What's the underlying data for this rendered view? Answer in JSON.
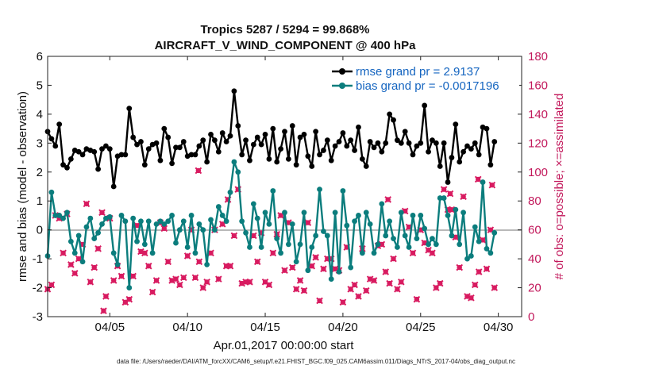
{
  "chart_data": {
    "type": "line",
    "title_line1": "Tropics 5287 / 5294 = 99.868%",
    "title_line2": "AIRCRAFT_V_WIND_COMPONENT @ 400 hPa",
    "xlabel": "Apr.01,2017 00:00:00 start",
    "ylabel_left": "rmse and bias (model - observation)",
    "ylabel_right": "# of obs: o=possible; ×=assimilated",
    "x_range_days": [
      1,
      31.5
    ],
    "ylim_left": [
      -3,
      6
    ],
    "ylim_right": [
      0,
      180
    ],
    "x_tick_values": [
      5,
      10,
      15,
      20,
      25,
      30
    ],
    "x_tick_labels": [
      "04/05",
      "04/10",
      "04/15",
      "04/20",
      "04/25",
      "04/30"
    ],
    "y_left_tick_labels": [
      "-3",
      "-2",
      "-1",
      "0",
      "1",
      "2",
      "3",
      "4",
      "5",
      "6"
    ],
    "y_right_tick_labels": [
      "0",
      "20",
      "40",
      "60",
      "80",
      "100",
      "120",
      "140",
      "160",
      "180"
    ],
    "x_step_days": 0.25,
    "x_start_day": 1.0,
    "series": [
      {
        "name": "rmse",
        "legend_label": "rmse grand pr = 2.9137",
        "color": "#000000",
        "axis": "left",
        "values": [
          3.4,
          3.15,
          2.9,
          3.65,
          2.25,
          2.15,
          2.45,
          2.75,
          2.7,
          2.6,
          2.8,
          2.75,
          2.7,
          2.1,
          2.8,
          2.9,
          2.8,
          1.5,
          2.55,
          2.6,
          2.6,
          4.2,
          3.2,
          2.95,
          3.05,
          2.25,
          2.8,
          2.95,
          3.0,
          2.4,
          3.5,
          3.2,
          2.3,
          2.85,
          2.85,
          3.05,
          2.55,
          2.6,
          2.6,
          2.9,
          3.1,
          2.35,
          3.3,
          3.1,
          2.7,
          3.35,
          3.05,
          3.25,
          4.8,
          3.6,
          2.6,
          3.1,
          2.4,
          2.95,
          3.2,
          2.95,
          3.3,
          2.45,
          3.5,
          2.35,
          2.8,
          3.4,
          2.45,
          3.6,
          2.25,
          3.2,
          3.3,
          2.55,
          2.2,
          3.4,
          2.6,
          2.75,
          3.1,
          2.4,
          2.9,
          3.05,
          3.35,
          2.9,
          3.1,
          2.75,
          3.55,
          2.45,
          2.2,
          3.05,
          2.85,
          3.0,
          2.7,
          3.0,
          4.0,
          3.8,
          3.1,
          3.0,
          3.4,
          3.0,
          2.6,
          2.9,
          3.0,
          4.3,
          2.7,
          3.1,
          3.0,
          2.2,
          3.0,
          1.65,
          2.5,
          3.65,
          2.35,
          2.7,
          2.9,
          2.8,
          3.0,
          2.6,
          3.55,
          3.5,
          2.25,
          3.05
        ]
      },
      {
        "name": "bias",
        "legend_label": "bias grand pr = -0.0017196",
        "color": "#0b7d7d",
        "axis": "left",
        "values": [
          -0.9,
          1.3,
          0.5,
          0.5,
          0.4,
          0.6,
          -0.4,
          -0.8,
          -0.2,
          -1.1,
          0.1,
          0.4,
          -0.3,
          -0.1,
          0.2,
          0.4,
          0.45,
          -0.8,
          -1.2,
          0.5,
          0.3,
          -2.0,
          0.4,
          -0.4,
          0.3,
          -0.5,
          0.3,
          -0.8,
          0.2,
          0.3,
          0.2,
          0.3,
          0.5,
          -0.45,
          0.0,
          0.3,
          -0.6,
          0.5,
          -0.8,
          0.2,
          0.0,
          -1.2,
          0.35,
          0.0,
          0.8,
          0.5,
          0.3,
          1.3,
          2.35,
          2.0,
          0.3,
          -0.1,
          -0.6,
          0.9,
          0.4,
          -0.6,
          0.6,
          0.2,
          1.35,
          -0.3,
          -0.8,
          0.6,
          -0.5,
          0.2,
          -1.1,
          -0.5,
          0.6,
          -1.4,
          -0.6,
          -0.2,
          1.4,
          -0.05,
          -0.2,
          -1.7,
          0.6,
          -1.45,
          1.35,
          0.15,
          -1.3,
          0.3,
          0.5,
          -0.8,
          0.6,
          0.2,
          -0.8,
          -0.5,
          0.9,
          -0.2,
          0.3,
          -0.3,
          -0.6,
          0.6,
          -0.2,
          -0.6,
          0.5,
          -0.3,
          0.5,
          0.05,
          -0.5,
          -0.3,
          -0.5,
          1.1,
          1.1,
          0.5,
          -0.2,
          0.7,
          -0.5,
          0.6,
          -1.0,
          -0.9,
          0.1,
          -0.4,
          1.65,
          -0.65,
          -0.8,
          -0.1
        ]
      },
      {
        "name": "obs_possible",
        "legend_label": "o=possible",
        "color": "#d81b60",
        "axis": "right",
        "values": [
          19,
          22,
          70,
          68,
          44,
          71,
          36,
          30,
          40,
          50,
          78,
          24,
          34,
          47,
          72,
          14,
          68,
          25,
          35,
          28,
          10,
          12,
          28,
          63,
          45,
          44,
          35,
          17,
          25,
          65,
          61,
          38,
          25,
          26,
          22,
          27,
          42,
          60,
          27,
          38,
          20,
          24,
          44,
          60,
          26,
          64,
          35,
          35,
          56,
          88,
          23,
          24,
          24,
          56,
          38,
          58,
          24,
          22,
          44,
          57,
          70,
          32,
          65,
          34,
          19,
          25,
          18,
          65,
          35,
          41,
          11,
          33,
          40,
          40,
          33,
          32,
          10,
          48,
          19,
          22,
          14,
          47,
          18,
          26,
          25,
          49,
          50,
          31,
          23,
          40,
          19,
          24,
          73,
          62,
          44,
          12,
          60,
          51,
          46,
          44,
          20,
          23,
          88,
          74,
          74,
          55,
          34,
          83,
          14,
          13,
          22,
          31,
          53,
          33,
          60,
          20
        ]
      },
      {
        "name": "obs_assimilated",
        "legend_label": "×=assimilated",
        "color": "#d81b60",
        "axis": "right",
        "values": [
          19,
          22,
          70,
          68,
          44,
          71,
          36,
          30,
          40,
          50,
          78,
          24,
          34,
          47,
          72,
          14,
          68,
          25,
          35,
          28,
          10,
          12,
          28,
          63,
          45,
          44,
          35,
          17,
          25,
          65,
          61,
          38,
          25,
          26,
          22,
          27,
          42,
          60,
          27,
          38,
          20,
          24,
          44,
          60,
          26,
          64,
          35,
          35,
          56,
          88,
          23,
          24,
          24,
          56,
          38,
          58,
          24,
          22,
          44,
          57,
          70,
          32,
          65,
          34,
          19,
          25,
          18,
          65,
          35,
          41,
          11,
          33,
          40,
          40,
          33,
          32,
          10,
          48,
          19,
          22,
          14,
          47,
          18,
          26,
          25,
          49,
          50,
          31,
          23,
          40,
          19,
          24,
          73,
          62,
          44,
          12,
          60,
          51,
          46,
          44,
          20,
          23,
          88,
          74,
          74,
          55,
          34,
          83,
          14,
          13,
          22,
          31,
          53,
          33,
          60,
          20
        ]
      }
    ],
    "annotation_outliers": [
      {
        "day": 4.6,
        "obs": 4
      },
      {
        "day": 10.7,
        "obs": 101
      },
      {
        "day": 12.6,
        "obs": 81
      },
      {
        "day": 22.9,
        "obs": 81
      },
      {
        "day": 26.9,
        "obs": 85
      },
      {
        "day": 28.7,
        "obs": 95
      },
      {
        "day": 29.6,
        "obs": 91
      }
    ],
    "zero_line": true,
    "legend_position": "top-right",
    "grid": false
  },
  "footer": {
    "text": "data file: /Users/raeder/DAI/ATM_forcXX/CAM6_setup/f.e21.FHIST_BGC.f09_025.CAM6assim.011/Diags_NTrS_2017-04/obs_diag_output.nc"
  },
  "colors": {
    "right_axis": "#c2185b",
    "zero_line": "#b9b9b9",
    "legend_text": "#1565c0"
  }
}
